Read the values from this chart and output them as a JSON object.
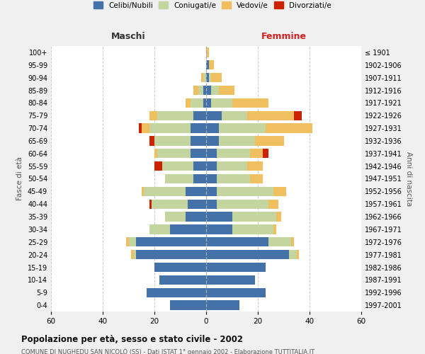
{
  "age_groups": [
    "0-4",
    "5-9",
    "10-14",
    "15-19",
    "20-24",
    "25-29",
    "30-34",
    "35-39",
    "40-44",
    "45-49",
    "50-54",
    "55-59",
    "60-64",
    "65-69",
    "70-74",
    "75-79",
    "80-84",
    "85-89",
    "90-94",
    "95-99",
    "100+"
  ],
  "birth_years": [
    "1997-2001",
    "1992-1996",
    "1987-1991",
    "1982-1986",
    "1977-1981",
    "1972-1976",
    "1967-1971",
    "1962-1966",
    "1957-1961",
    "1952-1956",
    "1947-1951",
    "1942-1946",
    "1937-1941",
    "1932-1936",
    "1927-1931",
    "1922-1926",
    "1917-1921",
    "1912-1916",
    "1907-1911",
    "1902-1906",
    "≤ 1901"
  ],
  "colors": {
    "celibi": "#4472a8",
    "coniugati": "#c5d5a0",
    "vedovi": "#f0c060",
    "divorziati": "#cc2200"
  },
  "males": {
    "celibi": [
      14,
      23,
      18,
      20,
      27,
      27,
      14,
      8,
      7,
      8,
      5,
      5,
      6,
      6,
      6,
      5,
      1,
      1,
      0,
      0,
      0
    ],
    "coniugati": [
      0,
      0,
      0,
      0,
      1,
      3,
      8,
      8,
      14,
      16,
      11,
      12,
      13,
      14,
      16,
      14,
      5,
      2,
      1,
      0,
      0
    ],
    "vedovi": [
      0,
      0,
      0,
      0,
      1,
      1,
      0,
      0,
      0,
      1,
      0,
      0,
      1,
      0,
      3,
      3,
      2,
      2,
      1,
      0,
      0
    ],
    "divorziati": [
      0,
      0,
      0,
      0,
      0,
      0,
      0,
      0,
      1,
      0,
      0,
      3,
      0,
      2,
      1,
      0,
      0,
      0,
      0,
      0,
      0
    ]
  },
  "females": {
    "celibi": [
      13,
      23,
      19,
      23,
      32,
      24,
      10,
      10,
      4,
      4,
      4,
      4,
      4,
      5,
      5,
      6,
      2,
      2,
      1,
      1,
      0
    ],
    "coniugati": [
      0,
      0,
      0,
      0,
      3,
      9,
      16,
      17,
      20,
      22,
      13,
      12,
      13,
      14,
      18,
      10,
      8,
      3,
      1,
      0,
      0
    ],
    "vedovi": [
      0,
      0,
      0,
      0,
      1,
      1,
      1,
      2,
      4,
      5,
      5,
      6,
      5,
      11,
      18,
      18,
      14,
      6,
      4,
      2,
      1
    ],
    "divorziati": [
      0,
      0,
      0,
      0,
      0,
      0,
      0,
      0,
      0,
      0,
      0,
      0,
      2,
      0,
      0,
      3,
      0,
      0,
      0,
      0,
      0
    ]
  },
  "xlim": 60,
  "title": "Popolazione per età, sesso e stato civile - 2002",
  "subtitle": "COMUNE DI NUGHEDU SAN NICOLÒ (SS) - Dati ISTAT 1° gennaio 2002 - Elaborazione TUTTITALIA.IT",
  "xlabel_left": "Maschi",
  "xlabel_right": "Femmine",
  "ylabel": "Fasce di età",
  "ylabel_right": "Anni di nascita",
  "legend_labels": [
    "Celibi/Nubili",
    "Coniugati/e",
    "Vedovi/e",
    "Divorziati/e"
  ],
  "bg_color": "#f0f0f0",
  "plot_bg": "#ffffff"
}
